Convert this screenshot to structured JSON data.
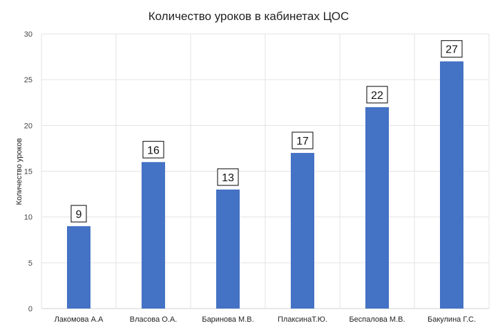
{
  "chart_data": {
    "type": "bar",
    "title": "Количество уроков в кабинетах ЦОС",
    "xlabel": "",
    "ylabel": "Количество уроков",
    "categories": [
      "Лакомова А.А",
      "Власова О.А.",
      "Баринова М.В.",
      "ПлаксинаТ.Ю.",
      "Беспалова М.В.",
      "Бакулина Г.С."
    ],
    "values": [
      9,
      16,
      13,
      17,
      22,
      27
    ],
    "ylim": [
      0,
      30
    ],
    "yticks": [
      0,
      5,
      10,
      15,
      20,
      25,
      30
    ],
    "grid": true,
    "legend": "none",
    "colors": {
      "bar": "#4472C4",
      "grid": "#e3e3e3",
      "axis": "#d0d0d0"
    }
  }
}
